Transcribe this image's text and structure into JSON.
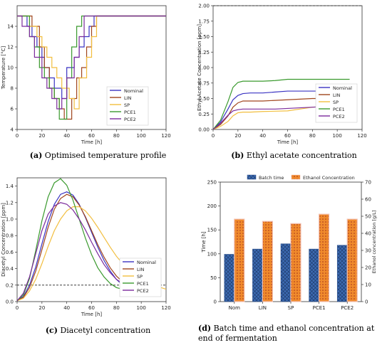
{
  "series_colors": {
    "Nominal": "#3a33c2",
    "LIN": "#a0451d",
    "SP": "#f2be3e",
    "PCE1": "#3a9a2e",
    "PCE2": "#7b2a9c",
    "batch": "#3d6bb3",
    "ethanol": "#f08a2c"
  },
  "chart_data": [
    {
      "type": "line",
      "id": "a",
      "xlabel": "Time [h]",
      "ylabel": "Temperature [°C]",
      "xlim": [
        0,
        120
      ],
      "ylim": [
        4,
        16
      ],
      "xticks": [
        "0",
        "20",
        "40",
        "60",
        "80",
        "100",
        "120"
      ],
      "yticks": [
        "4",
        "6",
        "8",
        "10",
        "12",
        "14"
      ],
      "series": [
        {
          "name": "Nominal",
          "x": [
            0,
            8,
            8,
            12,
            12,
            16,
            16,
            20,
            20,
            22,
            22,
            26,
            26,
            30,
            30,
            36,
            36,
            40,
            40,
            46,
            46,
            50,
            50,
            54,
            54,
            58,
            58,
            62,
            62,
            120
          ],
          "y": [
            15,
            15,
            14,
            14,
            13,
            13,
            12,
            12,
            11,
            11,
            10,
            10,
            9,
            9,
            8,
            8,
            7,
            7,
            10,
            10,
            11,
            11,
            12,
            12,
            13,
            13,
            14,
            14,
            15,
            15
          ]
        },
        {
          "name": "LIN",
          "x": [
            0,
            12,
            12,
            18,
            18,
            22,
            22,
            26,
            26,
            30,
            30,
            34,
            34,
            38,
            38,
            44,
            44,
            48,
            48,
            52,
            52,
            56,
            56,
            60,
            60,
            64,
            64,
            120
          ],
          "y": [
            15,
            15,
            14,
            14,
            12,
            12,
            10,
            10,
            8,
            8,
            7,
            7,
            6,
            6,
            5,
            5,
            7,
            7,
            9,
            9,
            10,
            10,
            12,
            12,
            14,
            14,
            15,
            15
          ]
        },
        {
          "name": "SP",
          "x": [
            0,
            10,
            10,
            16,
            16,
            20,
            20,
            24,
            24,
            28,
            28,
            32,
            32,
            36,
            36,
            42,
            42,
            46,
            46,
            50,
            50,
            56,
            56,
            60,
            60,
            64,
            64,
            68,
            68,
            120
          ],
          "y": [
            15,
            15,
            14,
            14,
            13,
            13,
            12,
            12,
            11,
            11,
            10,
            10,
            9,
            9,
            8,
            8,
            7,
            7,
            6,
            6,
            9,
            9,
            11,
            11,
            13,
            13,
            15,
            15,
            15,
            15
          ]
        },
        {
          "name": "PCE1",
          "x": [
            0,
            10,
            10,
            14,
            14,
            18,
            18,
            22,
            22,
            26,
            26,
            30,
            30,
            34,
            34,
            40,
            40,
            44,
            44,
            48,
            48,
            52,
            52,
            56,
            56,
            120
          ],
          "y": [
            15,
            15,
            13,
            13,
            12,
            12,
            10,
            10,
            9,
            9,
            8,
            8,
            7,
            7,
            5,
            5,
            9,
            9,
            12,
            12,
            14,
            14,
            15,
            15,
            15,
            15
          ]
        },
        {
          "name": "PCE2",
          "x": [
            0,
            4,
            4,
            10,
            10,
            14,
            14,
            20,
            20,
            24,
            24,
            28,
            28,
            32,
            32,
            36,
            36,
            40,
            40,
            46,
            46,
            50,
            50,
            54,
            54,
            58,
            58,
            120
          ],
          "y": [
            15,
            15,
            14,
            14,
            13,
            13,
            11,
            11,
            9,
            9,
            8,
            8,
            7,
            7,
            6,
            6,
            7,
            7,
            9,
            9,
            11,
            11,
            13,
            13,
            15,
            15,
            15,
            15
          ]
        }
      ],
      "legend": "lower-right",
      "grid": false
    },
    {
      "type": "line",
      "id": "b",
      "xlabel": "Time [h]",
      "ylabel": "Ethyl Acetate Concentration [ppm]",
      "xlim": [
        0,
        120
      ],
      "ylim": [
        0,
        2.0
      ],
      "xticks": [
        "0",
        "20",
        "40",
        "60",
        "80",
        "100",
        "120"
      ],
      "yticks": [
        "0.00",
        "0.25",
        "0.50",
        "0.75",
        "1.00",
        "1.25",
        "1.50",
        "1.75",
        "2.00"
      ],
      "reference_line": 2.0,
      "series": [
        {
          "name": "Nominal",
          "x": [
            0,
            6,
            12,
            16,
            20,
            24,
            30,
            40,
            60,
            80,
            100
          ],
          "y": [
            0,
            0.12,
            0.33,
            0.48,
            0.55,
            0.58,
            0.59,
            0.59,
            0.62,
            0.62,
            0.62
          ]
        },
        {
          "name": "LIN",
          "x": [
            0,
            6,
            12,
            16,
            20,
            24,
            30,
            40,
            60,
            80,
            100
          ],
          "y": [
            0,
            0.08,
            0.22,
            0.36,
            0.43,
            0.46,
            0.46,
            0.46,
            0.48,
            0.5,
            0.5
          ]
        },
        {
          "name": "SP",
          "x": [
            0,
            6,
            12,
            16,
            20,
            24,
            30,
            40,
            60,
            70,
            80,
            100,
            110
          ],
          "y": [
            0,
            0.05,
            0.13,
            0.22,
            0.27,
            0.28,
            0.28,
            0.29,
            0.3,
            0.33,
            0.36,
            0.39,
            0.4
          ]
        },
        {
          "name": "PCE1",
          "x": [
            0,
            6,
            12,
            16,
            20,
            24,
            30,
            40,
            50,
            60,
            80,
            100,
            110
          ],
          "y": [
            0,
            0.15,
            0.45,
            0.68,
            0.76,
            0.78,
            0.78,
            0.78,
            0.79,
            0.81,
            0.81,
            0.81,
            0.81
          ]
        },
        {
          "name": "PCE2",
          "x": [
            0,
            6,
            12,
            16,
            20,
            24,
            30,
            40,
            50,
            60,
            80,
            100
          ],
          "y": [
            0,
            0.1,
            0.23,
            0.3,
            0.32,
            0.33,
            0.33,
            0.33,
            0.33,
            0.34,
            0.36,
            0.38
          ]
        }
      ],
      "legend": "lower-right",
      "grid": false
    },
    {
      "type": "line",
      "id": "c",
      "xlabel": "Time [h]",
      "ylabel": "Diacetyl Concentration [ppm]",
      "xlim": [
        0,
        120
      ],
      "ylim": [
        0,
        1.5
      ],
      "xticks": [
        "0",
        "20",
        "40",
        "60",
        "80",
        "100",
        "120"
      ],
      "yticks": [
        "0.0",
        "0.2",
        "0.4",
        "0.6",
        "0.8",
        "1.0",
        "1.2",
        "1.4"
      ],
      "reference_line": 0.2,
      "series": [
        {
          "name": "Nominal",
          "x": [
            0,
            5,
            10,
            15,
            20,
            25,
            30,
            35,
            40,
            45,
            50,
            55,
            60,
            65,
            70,
            75,
            80,
            85,
            90
          ],
          "y": [
            0.01,
            0.06,
            0.2,
            0.42,
            0.7,
            0.97,
            1.18,
            1.3,
            1.33,
            1.29,
            1.18,
            1.02,
            0.84,
            0.66,
            0.5,
            0.37,
            0.27,
            0.2,
            0.17
          ]
        },
        {
          "name": "LIN",
          "x": [
            0,
            5,
            10,
            15,
            20,
            25,
            30,
            35,
            40,
            45,
            50,
            55,
            60,
            65,
            70,
            75,
            80,
            85,
            90,
            95
          ],
          "y": [
            0.01,
            0.05,
            0.17,
            0.37,
            0.63,
            0.9,
            1.12,
            1.25,
            1.3,
            1.27,
            1.17,
            1.03,
            0.86,
            0.69,
            0.54,
            0.41,
            0.31,
            0.24,
            0.2,
            0.18
          ]
        },
        {
          "name": "SP",
          "x": [
            0,
            5,
            10,
            15,
            20,
            25,
            30,
            35,
            40,
            45,
            50,
            55,
            60,
            65,
            70,
            75,
            80,
            85,
            90,
            95,
            100,
            110,
            120
          ],
          "y": [
            0.01,
            0.04,
            0.13,
            0.27,
            0.46,
            0.67,
            0.86,
            1.0,
            1.1,
            1.15,
            1.15,
            1.1,
            1.01,
            0.9,
            0.78,
            0.66,
            0.55,
            0.46,
            0.39,
            0.33,
            0.28,
            0.2,
            0.15
          ]
        },
        {
          "name": "PCE1",
          "x": [
            0,
            5,
            10,
            15,
            20,
            25,
            30,
            35,
            40,
            45,
            50,
            55,
            60,
            65,
            70,
            75,
            80,
            85
          ],
          "y": [
            0.01,
            0.08,
            0.28,
            0.62,
            0.98,
            1.27,
            1.44,
            1.49,
            1.41,
            1.23,
            1.0,
            0.77,
            0.57,
            0.41,
            0.3,
            0.22,
            0.17,
            0.15
          ]
        },
        {
          "name": "PCE2",
          "x": [
            0,
            5,
            10,
            15,
            20,
            25,
            30,
            35,
            40,
            45,
            50,
            55,
            60,
            65,
            70,
            75,
            80,
            85,
            90
          ],
          "y": [
            0.01,
            0.1,
            0.3,
            0.58,
            0.86,
            1.06,
            1.16,
            1.2,
            1.18,
            1.11,
            1.0,
            0.87,
            0.72,
            0.58,
            0.45,
            0.35,
            0.27,
            0.22,
            0.19
          ]
        }
      ],
      "legend": "lower-right",
      "grid": false
    },
    {
      "type": "bar",
      "id": "d",
      "xlabel": "",
      "ylabel": "Time [h]",
      "y2label": "Ethanol concentration [g/L]",
      "categories": [
        "Nom",
        "LIN",
        "SP",
        "PCE1",
        "PCE2"
      ],
      "ylim": [
        0,
        250
      ],
      "y2lim": [
        0,
        70
      ],
      "yticks": [
        "0",
        "50",
        "100",
        "150",
        "200",
        "250"
      ],
      "y2ticks": [
        "0",
        "10",
        "20",
        "30",
        "40",
        "50",
        "60",
        "70"
      ],
      "series": [
        {
          "name": "Batch time",
          "axis": "left",
          "values": [
            99,
            110,
            121,
            110,
            118
          ]
        },
        {
          "name": "Ethanol Concentration",
          "axis": "right",
          "values": [
            48.3,
            47.0,
            45.7,
            51.2,
            48.3
          ]
        }
      ],
      "legend": "top",
      "grid": false
    }
  ],
  "captions": {
    "a": {
      "label": "(a)",
      "text": "Optimised temperature profile"
    },
    "b": {
      "label": "(b)",
      "text": "Ethyl acetate concentration"
    },
    "c": {
      "label": "(c)",
      "text": "Diacetyl concentration"
    },
    "d": {
      "label": "(d)",
      "text": "Batch time and ethanol concentration at end of fermentation"
    }
  }
}
